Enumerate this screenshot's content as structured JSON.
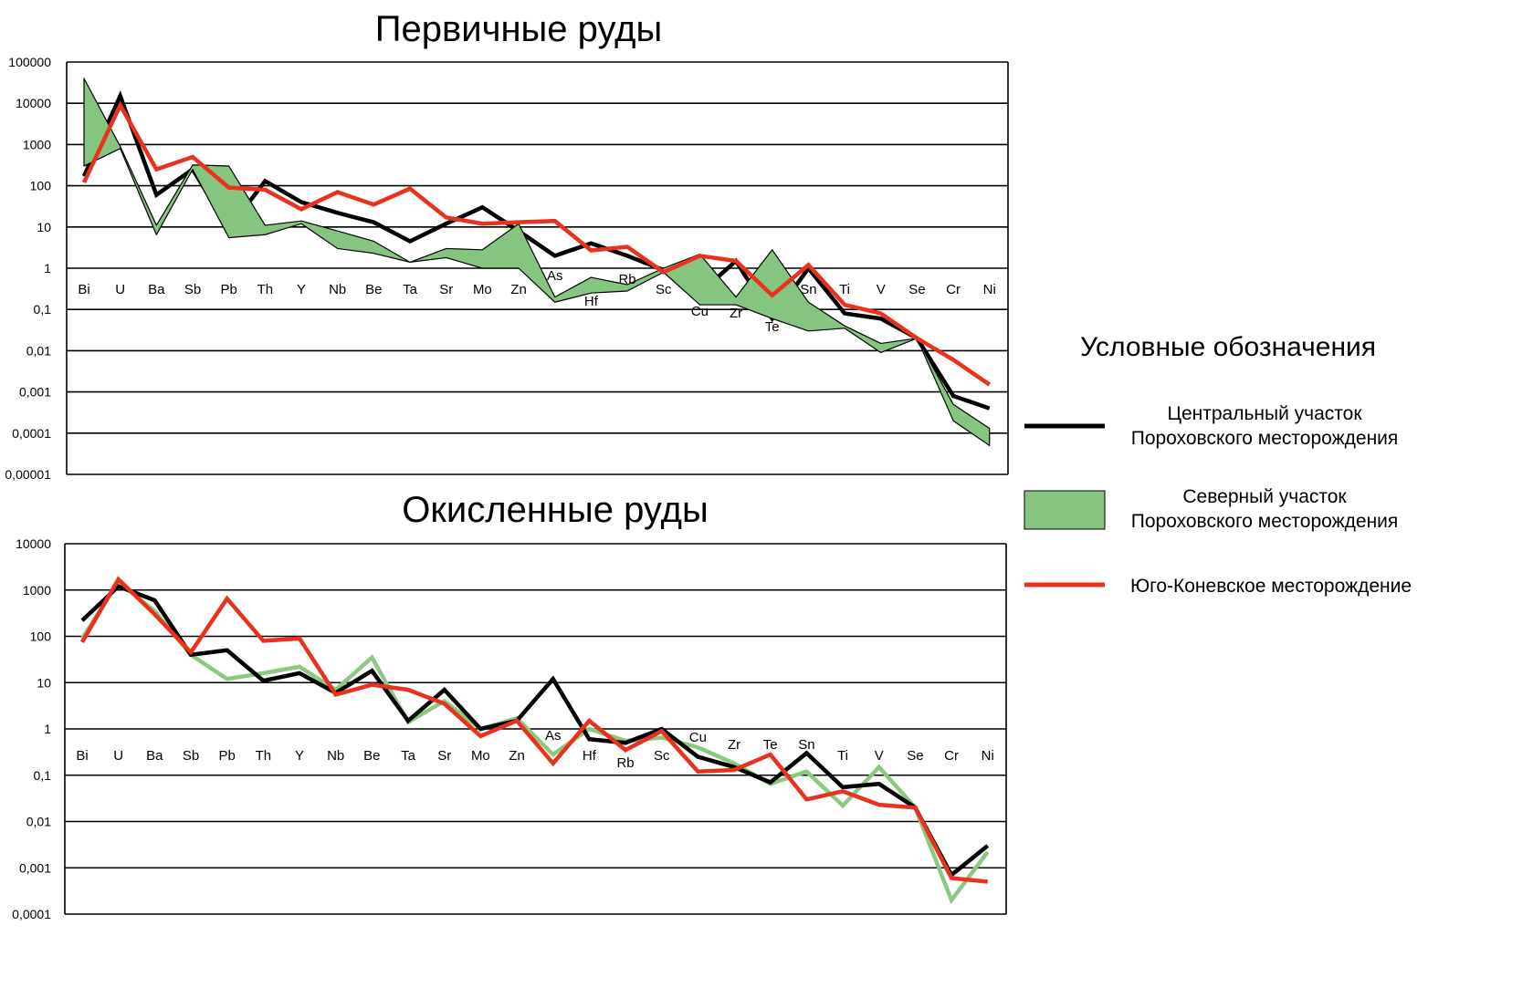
{
  "colors": {
    "central": "#000000",
    "north_fill": "#86c57f",
    "north_line": "#8cc980",
    "south": "#e8321e",
    "grid": "#000000"
  },
  "legend": {
    "title": "Условные обозначения",
    "items": [
      {
        "key": "central",
        "line1": "Центральный участок",
        "line2": "Пороховского месторождения"
      },
      {
        "key": "north",
        "line1": "Северный участок",
        "line2": "Пороховского месторождения"
      },
      {
        "key": "south",
        "line1": "Юго-Коневское месторождение",
        "line2": ""
      }
    ]
  },
  "chart_data": [
    {
      "type": "line",
      "title": "Первичные руды",
      "yscale": "log",
      "ylim": [
        1e-05,
        100000
      ],
      "yticks": [
        "100000",
        "10000",
        "1000",
        "100",
        "10",
        "1",
        "0,1",
        "0,01",
        "0,001",
        "0,0001",
        "0,00001"
      ],
      "categories": [
        "Bi",
        "U",
        "Ba",
        "Sb",
        "Pb",
        "Th",
        "Y",
        "Nb",
        "Be",
        "Ta",
        "Sr",
        "Mo",
        "Zn",
        "As",
        "Hf",
        "Rb",
        "Sc",
        "Cu",
        "Zr",
        "Te",
        "Sn",
        "Ti",
        "V",
        "Se",
        "Cr",
        "Ni"
      ],
      "series": [
        {
          "name": "Центральный участок Пороховского месторождения",
          "key": "central",
          "kind": "line",
          "values": [
            170,
            15000,
            60,
            250,
            9,
            130,
            40,
            22,
            13,
            4.5,
            12,
            30,
            8,
            2,
            4,
            2,
            0.9,
            0.25,
            1.5,
            0.06,
            1.0,
            0.08,
            0.06,
            0.02,
            0.0008,
            0.0004
          ]
        },
        {
          "name": "Северный участок Пороховского месторождения",
          "key": "north",
          "kind": "band",
          "upper": [
            40000,
            900,
            11,
            320,
            300,
            11,
            14,
            8,
            4.5,
            1.4,
            3,
            2.8,
            12,
            0.2,
            0.6,
            0.4,
            1.0,
            2.2,
            0.2,
            2.8,
            0.15,
            0.04,
            0.015,
            0.02,
            0.0005,
            0.00013
          ],
          "lower": [
            300,
            800,
            6.5,
            250,
            5.5,
            6.5,
            12,
            3,
            2.3,
            1.4,
            1.8,
            1.0,
            1.0,
            0.15,
            0.25,
            0.28,
            0.8,
            0.13,
            0.13,
            0.06,
            0.03,
            0.035,
            0.009,
            0.02,
            0.0002,
            5e-05
          ]
        },
        {
          "name": "Юго-Коневское месторождение",
          "key": "south",
          "kind": "line",
          "values": [
            120,
            9000,
            250,
            500,
            90,
            80,
            27,
            70,
            35,
            85,
            17,
            12,
            13,
            14,
            2.7,
            3.3,
            0.8,
            2,
            1.5,
            0.22,
            1.2,
            0.13,
            0.08,
            0.02,
            0.006,
            0.0015
          ]
        }
      ]
    },
    {
      "type": "line",
      "title": "Окисленные руды",
      "yscale": "log",
      "ylim": [
        0.0001,
        10000
      ],
      "yticks": [
        "10000",
        "1000",
        "100",
        "10",
        "1",
        "0,1",
        "0,01",
        "0,001",
        "0,0001"
      ],
      "categories": [
        "Bi",
        "U",
        "Ba",
        "Sb",
        "Pb",
        "Th",
        "Y",
        "Nb",
        "Be",
        "Ta",
        "Sr",
        "Mo",
        "Zn",
        "As",
        "Hf",
        "Rb",
        "Sc",
        "Cu",
        "Zr",
        "Te",
        "Sn",
        "Ti",
        "V",
        "Se",
        "Cr",
        "Ni"
      ],
      "series": [
        {
          "name": "Северный участок Пороховского месторождения",
          "key": "north",
          "kind": "line",
          "values": [
            90,
            1500,
            350,
            40,
            12,
            16,
            22,
            7,
            35,
            1.4,
            4,
            1.0,
            1.7,
            0.28,
            1.0,
            0.55,
            0.65,
            0.4,
            0.18,
            0.065,
            0.12,
            0.022,
            0.15,
            0.02,
            0.0002,
            0.0022
          ]
        },
        {
          "name": "Центральный участок Пороховского месторождения",
          "key": "central",
          "kind": "line",
          "values": [
            220,
            1200,
            600,
            40,
            50,
            11,
            16,
            6,
            18,
            1.5,
            7,
            1.0,
            1.5,
            12,
            0.6,
            0.5,
            1.0,
            0.25,
            0.15,
            0.07,
            0.3,
            0.055,
            0.065,
            0.02,
            0.0007,
            0.003
          ]
        },
        {
          "name": "Юго-Коневское месторождение",
          "key": "south",
          "kind": "line",
          "values": [
            75,
            1700,
            300,
            45,
            650,
            80,
            90,
            5.5,
            9,
            7,
            3.5,
            0.7,
            1.5,
            0.18,
            1.5,
            0.35,
            0.9,
            0.12,
            0.13,
            0.28,
            0.03,
            0.045,
            0.023,
            0.02,
            0.0006,
            0.0005
          ]
        }
      ]
    }
  ]
}
